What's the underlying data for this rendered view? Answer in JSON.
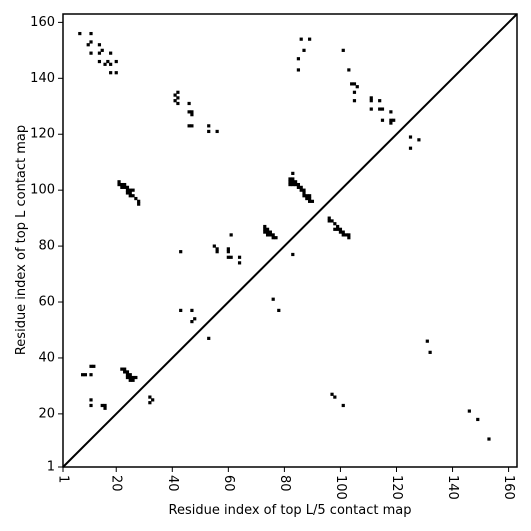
{
  "chart_data": {
    "type": "scatter",
    "title": "",
    "xlabel": "Residue index of top L/5 contact map",
    "ylabel": "Residue index of top L contact map",
    "xlim": [
      1,
      163
    ],
    "ylim": [
      1,
      163
    ],
    "xticks": [
      1,
      20,
      40,
      60,
      80,
      100,
      120,
      140,
      160
    ],
    "yticks": [
      1,
      20,
      40,
      60,
      80,
      100,
      120,
      140,
      160
    ],
    "xtick_labels": [
      "1",
      "20",
      "40",
      "60",
      "80",
      "100",
      "120",
      "140",
      "160"
    ],
    "ytick_labels": [
      "1",
      "20",
      "40",
      "60",
      "80",
      "100",
      "120",
      "140",
      "160"
    ],
    "grid": false,
    "marker_color": "#000000",
    "diagonal": {
      "from": [
        1,
        1
      ],
      "to": [
        163,
        163
      ]
    },
    "series": [
      {
        "name": "",
        "points": [
          [
            7,
            156
          ],
          [
            10,
            152
          ],
          [
            11,
            153
          ],
          [
            11,
            156
          ],
          [
            11,
            149
          ],
          [
            14,
            152
          ],
          [
            14,
            149
          ],
          [
            15,
            150
          ],
          [
            14,
            146
          ],
          [
            16,
            145
          ],
          [
            17,
            146
          ],
          [
            18,
            145
          ],
          [
            18,
            149
          ],
          [
            18,
            142
          ],
          [
            20,
            142
          ],
          [
            20,
            146
          ],
          [
            21,
            102
          ],
          [
            21,
            103
          ],
          [
            22,
            101
          ],
          [
            22,
            102
          ],
          [
            23,
            101
          ],
          [
            23,
            102
          ],
          [
            24,
            100
          ],
          [
            24,
            101
          ],
          [
            25,
            100
          ],
          [
            25,
            99
          ],
          [
            25,
            98
          ],
          [
            26,
            98
          ],
          [
            26,
            100
          ],
          [
            27,
            97
          ],
          [
            28,
            96
          ],
          [
            28,
            95
          ],
          [
            24,
            99
          ],
          [
            41,
            134
          ],
          [
            41,
            132
          ],
          [
            42,
            131
          ],
          [
            42,
            133
          ],
          [
            42,
            135
          ],
          [
            46,
            131
          ],
          [
            46,
            128
          ],
          [
            47,
            128
          ],
          [
            47,
            127
          ],
          [
            46,
            123
          ],
          [
            47,
            123
          ],
          [
            53,
            123
          ],
          [
            53,
            121
          ],
          [
            56,
            121
          ],
          [
            43,
            78
          ],
          [
            43,
            57
          ],
          [
            47,
            57
          ],
          [
            47,
            53
          ],
          [
            48,
            54
          ],
          [
            53,
            47
          ],
          [
            55,
            80
          ],
          [
            56,
            79
          ],
          [
            56,
            78
          ],
          [
            60,
            79
          ],
          [
            60,
            78
          ],
          [
            60,
            76
          ],
          [
            61,
            76
          ],
          [
            61,
            84
          ],
          [
            64,
            76
          ],
          [
            64,
            74
          ],
          [
            73,
            87
          ],
          [
            73,
            86
          ],
          [
            73,
            85
          ],
          [
            74,
            86
          ],
          [
            74,
            85
          ],
          [
            75,
            85
          ],
          [
            75,
            84
          ],
          [
            76,
            84
          ],
          [
            76,
            83
          ],
          [
            77,
            83
          ],
          [
            74,
            84
          ],
          [
            76,
            61
          ],
          [
            78,
            57
          ],
          [
            83,
            77
          ],
          [
            82,
            104
          ],
          [
            82,
            103
          ],
          [
            82,
            102
          ],
          [
            83,
            106
          ],
          [
            83,
            104
          ],
          [
            83,
            103
          ],
          [
            83,
            102
          ],
          [
            84,
            103
          ],
          [
            84,
            102
          ],
          [
            85,
            102
          ],
          [
            85,
            101
          ],
          [
            86,
            101
          ],
          [
            86,
            100
          ],
          [
            87,
            100
          ],
          [
            87,
            99
          ],
          [
            87,
            98
          ],
          [
            88,
            98
          ],
          [
            89,
            98
          ],
          [
            89,
            97
          ],
          [
            89,
            96
          ],
          [
            90,
            96
          ],
          [
            88,
            97
          ],
          [
            85,
            147
          ],
          [
            85,
            143
          ],
          [
            86,
            154
          ],
          [
            87,
            150
          ],
          [
            89,
            154
          ],
          [
            96,
            90
          ],
          [
            96,
            89
          ],
          [
            97,
            89
          ],
          [
            98,
            88
          ],
          [
            98,
            86
          ],
          [
            99,
            87
          ],
          [
            99,
            86
          ],
          [
            100,
            86
          ],
          [
            100,
            85
          ],
          [
            101,
            85
          ],
          [
            101,
            84
          ],
          [
            102,
            84
          ],
          [
            103,
            84
          ],
          [
            103,
            83
          ],
          [
            97,
            27
          ],
          [
            98,
            26
          ],
          [
            101,
            23
          ],
          [
            101,
            150
          ],
          [
            103,
            143
          ],
          [
            104,
            138
          ],
          [
            105,
            138
          ],
          [
            105,
            135
          ],
          [
            105,
            132
          ],
          [
            106,
            137
          ],
          [
            111,
            133
          ],
          [
            111,
            132
          ],
          [
            111,
            129
          ],
          [
            114,
            132
          ],
          [
            114,
            129
          ],
          [
            115,
            129
          ],
          [
            115,
            125
          ],
          [
            118,
            128
          ],
          [
            118,
            125
          ],
          [
            118,
            124
          ],
          [
            119,
            125
          ],
          [
            125,
            119
          ],
          [
            125,
            115
          ],
          [
            128,
            118
          ],
          [
            131,
            46
          ],
          [
            132,
            42
          ],
          [
            146,
            21
          ],
          [
            149,
            18
          ],
          [
            153,
            11
          ],
          [
            8,
            34
          ],
          [
            9,
            34
          ],
          [
            11,
            37
          ],
          [
            11,
            34
          ],
          [
            12,
            37
          ],
          [
            11,
            25
          ],
          [
            11,
            23
          ],
          [
            15,
            23
          ],
          [
            16,
            23
          ],
          [
            16,
            22
          ],
          [
            22,
            36
          ],
          [
            23,
            36
          ],
          [
            23,
            35
          ],
          [
            24,
            35
          ],
          [
            24,
            34
          ],
          [
            24,
            33
          ],
          [
            25,
            34
          ],
          [
            25,
            33
          ],
          [
            25,
            32
          ],
          [
            26,
            33
          ],
          [
            26,
            32
          ],
          [
            27,
            33
          ],
          [
            32,
            26
          ],
          [
            32,
            24
          ],
          [
            33,
            25
          ]
        ]
      }
    ]
  }
}
